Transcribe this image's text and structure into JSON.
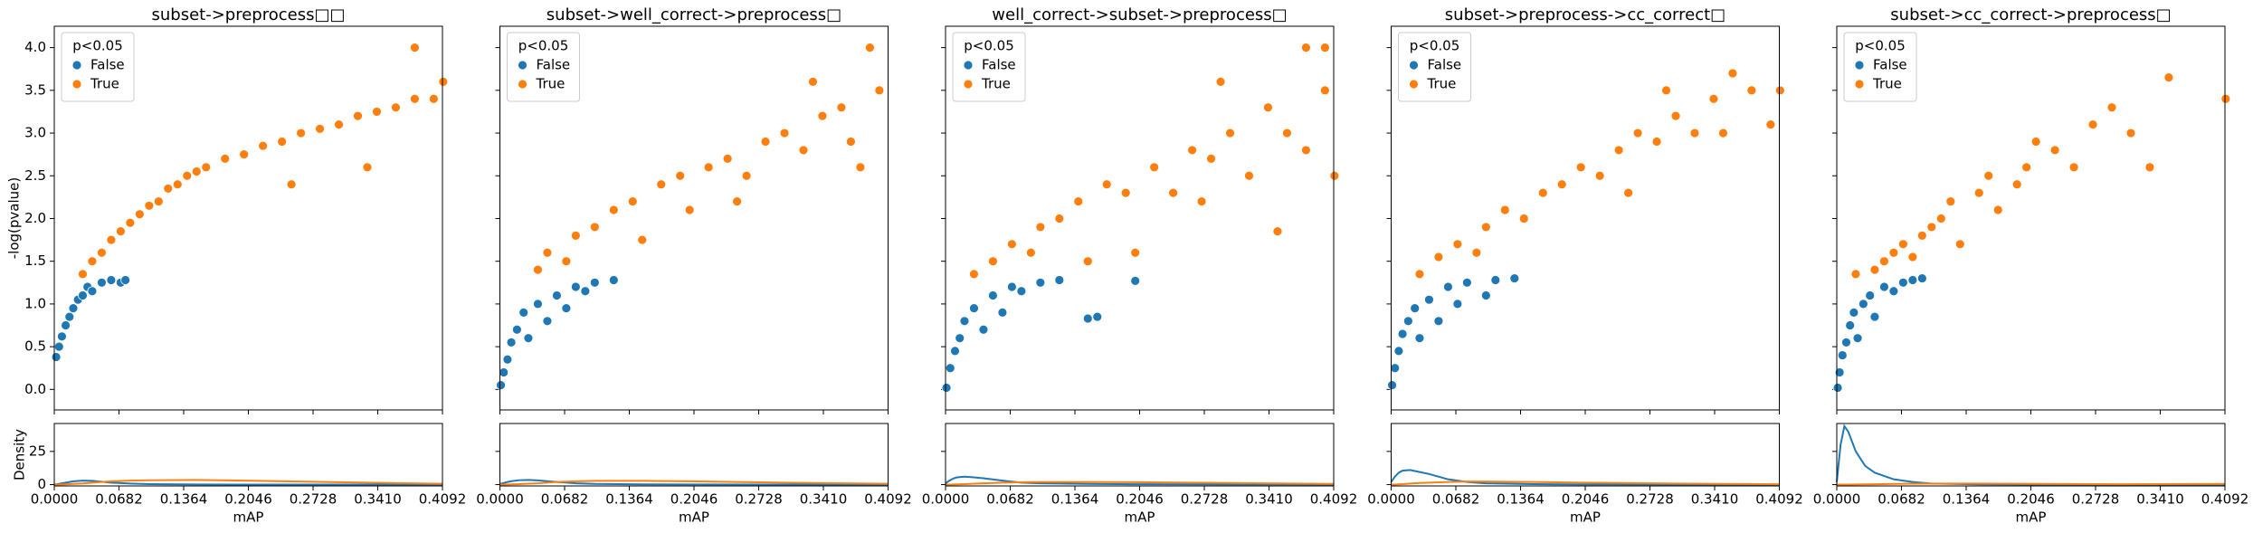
{
  "chart_data": [
    {
      "type": "scatter",
      "title": "subset->preprocess□□",
      "ylabel": "-log(pvalue)",
      "ytick_labels": true,
      "legend_title": "p<0.05",
      "legend": "upper left",
      "xlim": [
        0,
        0.4092
      ],
      "xticks": [
        {
          "value": 0,
          "label": "0.0000"
        },
        0.0682,
        0.1364,
        0.2046,
        0.2728,
        {
          "value": 0.341,
          "label": "0.3410"
        },
        0.4092
      ],
      "ylim": [
        -0.24,
        4.25
      ],
      "yticks": [
        {
          "value": 0,
          "label": "0.0"
        },
        0.5,
        {
          "value": 1,
          "label": "1.0"
        },
        1.5,
        {
          "value": 2,
          "label": "2.0"
        },
        2.5,
        {
          "value": 3,
          "label": "3.0"
        },
        3.5,
        {
          "value": 4,
          "label": "4.0"
        }
      ],
      "series": [
        {
          "name": "False",
          "color": "#1f77b4",
          "x": [
            0.002,
            0.005,
            0.008,
            0.012,
            0.016,
            0.02,
            0.025,
            0.03,
            0.035,
            0.04,
            0.05,
            0.06,
            0.07,
            0.075
          ],
          "y": [
            0.38,
            0.5,
            0.62,
            0.75,
            0.85,
            0.95,
            1.05,
            1.1,
            1.2,
            1.15,
            1.25,
            1.28,
            1.25,
            1.28
          ]
        },
        {
          "name": "True",
          "color": "#ff7f0e",
          "x": [
            0.03,
            0.04,
            0.05,
            0.06,
            0.07,
            0.08,
            0.09,
            0.1,
            0.11,
            0.12,
            0.13,
            0.14,
            0.15,
            0.16,
            0.18,
            0.2,
            0.22,
            0.24,
            0.26,
            0.28,
            0.3,
            0.32,
            0.34,
            0.36,
            0.38,
            0.4,
            0.38,
            0.41,
            0.25,
            0.33
          ],
          "y": [
            1.35,
            1.5,
            1.6,
            1.75,
            1.85,
            1.95,
            2.05,
            2.15,
            2.2,
            2.35,
            2.4,
            2.5,
            2.55,
            2.6,
            2.7,
            2.75,
            2.85,
            2.9,
            3.0,
            3.05,
            3.1,
            3.2,
            3.25,
            3.3,
            3.4,
            3.4,
            4.0,
            3.6,
            2.4,
            2.6
          ]
        }
      ],
      "density": {
        "type": "line",
        "ylabel": "Density",
        "xlabel": "mAP",
        "ytick_labels": true,
        "ylim": [
          -1,
          46
        ],
        "yticks": [
          0,
          25
        ],
        "x": [
          0,
          0.004,
          0.008,
          0.012,
          0.02,
          0.03,
          0.04,
          0.06,
          0.08,
          0.1,
          0.15,
          0.2,
          0.3,
          0.4092
        ],
        "series": [
          {
            "color": "#1f77b4",
            "values": [
              0,
              0.5,
              1,
              1.5,
              2.5,
              3,
              2.8,
              1.5,
              0.8,
              0.4,
              0.1,
              0,
              0,
              0
            ]
          },
          {
            "color": "#ff7f0e",
            "values": [
              0,
              0,
              0.1,
              0.2,
              0.5,
              0.9,
              1.5,
              2.5,
              3,
              3.3,
              3.5,
              3,
              1.8,
              0.6
            ]
          }
        ]
      }
    },
    {
      "type": "scatter",
      "title": "subset->well_correct->preprocess□",
      "ytick_labels": false,
      "legend_title": "p<0.05",
      "legend": "upper left",
      "xlim": [
        0,
        0.4092
      ],
      "xticks": [
        {
          "value": 0,
          "label": "0.0000"
        },
        0.0682,
        0.1364,
        0.2046,
        0.2728,
        {
          "value": 0.341,
          "label": "0.3410"
        },
        0.4092
      ],
      "ylim": [
        -0.24,
        4.25
      ],
      "yticks": [
        0,
        0.5,
        1,
        1.5,
        2,
        2.5,
        3,
        3.5,
        4
      ],
      "series": [
        {
          "name": "False",
          "color": "#1f77b4",
          "x": [
            0.001,
            0.004,
            0.008,
            0.012,
            0.018,
            0.025,
            0.03,
            0.04,
            0.05,
            0.06,
            0.07,
            0.08,
            0.09,
            0.1,
            0.12
          ],
          "y": [
            0.05,
            0.2,
            0.35,
            0.55,
            0.7,
            0.9,
            0.6,
            1.0,
            0.8,
            1.1,
            0.95,
            1.2,
            1.15,
            1.25,
            1.28
          ]
        },
        {
          "name": "True",
          "color": "#ff7f0e",
          "x": [
            0.04,
            0.05,
            0.07,
            0.08,
            0.1,
            0.12,
            0.14,
            0.15,
            0.17,
            0.19,
            0.2,
            0.22,
            0.24,
            0.26,
            0.28,
            0.3,
            0.32,
            0.34,
            0.36,
            0.38,
            0.4,
            0.39,
            0.37,
            0.33,
            0.25
          ],
          "y": [
            1.4,
            1.6,
            1.5,
            1.8,
            1.9,
            2.1,
            2.2,
            1.75,
            2.4,
            2.5,
            2.1,
            2.6,
            2.7,
            2.5,
            2.9,
            3.0,
            2.8,
            3.2,
            3.3,
            2.6,
            3.5,
            4.0,
            2.9,
            3.6,
            2.2
          ]
        }
      ],
      "density": {
        "type": "line",
        "xlabel": "mAP",
        "ytick_labels": false,
        "ylim": [
          -1,
          46
        ],
        "yticks": [
          0,
          25
        ],
        "x": [
          0,
          0.004,
          0.008,
          0.012,
          0.02,
          0.03,
          0.04,
          0.06,
          0.08,
          0.1,
          0.15,
          0.2,
          0.3,
          0.4092
        ],
        "series": [
          {
            "color": "#1f77b4",
            "values": [
              0.5,
              1.2,
              2,
              2.6,
              3.3,
              3.5,
              3.2,
              2,
              1,
              0.5,
              0.2,
              0.1,
              0,
              0
            ]
          },
          {
            "color": "#ff7f0e",
            "values": [
              0,
              0,
              0.1,
              0.2,
              0.4,
              0.7,
              1,
              2,
              2.5,
              2.8,
              2.8,
              2.5,
              1.5,
              0.6
            ]
          }
        ]
      }
    },
    {
      "type": "scatter",
      "title": "well_correct->subset->preprocess□",
      "ytick_labels": false,
      "legend_title": "p<0.05",
      "legend": "upper left",
      "xlim": [
        0,
        0.4092
      ],
      "xticks": [
        {
          "value": 0,
          "label": "0.0000"
        },
        0.0682,
        0.1364,
        0.2046,
        0.2728,
        {
          "value": 0.341,
          "label": "0.3410"
        },
        0.4092
      ],
      "ylim": [
        -0.24,
        4.25
      ],
      "yticks": [
        0,
        0.5,
        1,
        1.5,
        2,
        2.5,
        3,
        3.5,
        4
      ],
      "series": [
        {
          "name": "False",
          "color": "#1f77b4",
          "x": [
            0.001,
            0.005,
            0.01,
            0.015,
            0.02,
            0.03,
            0.04,
            0.05,
            0.06,
            0.07,
            0.08,
            0.1,
            0.12,
            0.15,
            0.16,
            0.2
          ],
          "y": [
            0.02,
            0.25,
            0.45,
            0.6,
            0.8,
            0.95,
            0.7,
            1.1,
            0.9,
            1.2,
            1.15,
            1.25,
            1.28,
            0.83,
            0.85,
            1.27
          ]
        },
        {
          "name": "True",
          "color": "#ff7f0e",
          "x": [
            0.03,
            0.05,
            0.07,
            0.09,
            0.1,
            0.12,
            0.14,
            0.15,
            0.17,
            0.19,
            0.2,
            0.22,
            0.24,
            0.26,
            0.28,
            0.3,
            0.32,
            0.34,
            0.36,
            0.38,
            0.4,
            0.41,
            0.35,
            0.38,
            0.29,
            0.27,
            0.4
          ],
          "y": [
            1.35,
            1.5,
            1.7,
            1.6,
            1.9,
            2.0,
            2.2,
            1.5,
            2.4,
            2.3,
            1.6,
            2.6,
            2.3,
            2.8,
            2.7,
            3.0,
            2.5,
            3.3,
            3.0,
            4.0,
            3.5,
            2.5,
            1.85,
            2.8,
            3.6,
            2.2,
            4.0
          ]
        }
      ],
      "density": {
        "type": "line",
        "xlabel": "mAP",
        "ytick_labels": false,
        "ylim": [
          -1,
          46
        ],
        "yticks": [
          0,
          25
        ],
        "x": [
          0,
          0.004,
          0.008,
          0.012,
          0.02,
          0.03,
          0.04,
          0.06,
          0.08,
          0.1,
          0.15,
          0.2,
          0.3,
          0.4092
        ],
        "series": [
          {
            "color": "#1f77b4",
            "values": [
              1,
              3,
              4.5,
              5.5,
              6,
              5.5,
              4.8,
              3,
              1.5,
              1,
              0.5,
              0.3,
              0.1,
              0
            ]
          },
          {
            "color": "#ff7f0e",
            "values": [
              0,
              0,
              0.1,
              0.2,
              0.4,
              0.7,
              1,
              1.5,
              1.8,
              2,
              2,
              1.8,
              1.2,
              0.5
            ]
          }
        ]
      }
    },
    {
      "type": "scatter",
      "title": "subset->preprocess->cc_correct□",
      "ytick_labels": false,
      "legend_title": "p<0.05",
      "legend": "upper left",
      "xlim": [
        0,
        0.4092
      ],
      "xticks": [
        {
          "value": 0,
          "label": "0.0000"
        },
        0.0682,
        0.1364,
        0.2046,
        0.2728,
        {
          "value": 0.341,
          "label": "0.3410"
        },
        0.4092
      ],
      "ylim": [
        -0.24,
        4.25
      ],
      "yticks": [
        0,
        0.5,
        1,
        1.5,
        2,
        2.5,
        3,
        3.5,
        4
      ],
      "series": [
        {
          "name": "False",
          "color": "#1f77b4",
          "x": [
            0.001,
            0.004,
            0.008,
            0.012,
            0.018,
            0.025,
            0.03,
            0.04,
            0.05,
            0.06,
            0.07,
            0.08,
            0.1,
            0.11,
            0.13
          ],
          "y": [
            0.05,
            0.25,
            0.45,
            0.65,
            0.8,
            0.95,
            0.6,
            1.05,
            0.8,
            1.2,
            1.0,
            1.25,
            1.1,
            1.28,
            1.3
          ]
        },
        {
          "name": "True",
          "color": "#ff7f0e",
          "x": [
            0.03,
            0.05,
            0.07,
            0.09,
            0.1,
            0.12,
            0.14,
            0.16,
            0.18,
            0.2,
            0.22,
            0.24,
            0.26,
            0.28,
            0.3,
            0.32,
            0.34,
            0.36,
            0.38,
            0.4,
            0.41,
            0.35,
            0.25,
            0.29
          ],
          "y": [
            1.35,
            1.55,
            1.7,
            1.6,
            1.9,
            2.1,
            2.0,
            2.3,
            2.4,
            2.6,
            2.5,
            2.8,
            3.0,
            2.9,
            3.2,
            3.0,
            3.4,
            3.7,
            3.5,
            3.1,
            3.5,
            3.0,
            2.3,
            3.5
          ]
        }
      ],
      "density": {
        "type": "line",
        "xlabel": "mAP",
        "ytick_labels": false,
        "ylim": [
          -1,
          46
        ],
        "yticks": [
          0,
          25
        ],
        "x": [
          0,
          0.004,
          0.008,
          0.012,
          0.02,
          0.03,
          0.04,
          0.06,
          0.08,
          0.1,
          0.15,
          0.2,
          0.3,
          0.4092
        ],
        "series": [
          {
            "color": "#1f77b4",
            "values": [
              2,
              6,
              9,
              10.5,
              11,
              9.5,
              8,
              4,
              2,
              1,
              0.4,
              0.1,
              0,
              0
            ]
          },
          {
            "color": "#ff7f0e",
            "values": [
              0,
              0,
              0.2,
              0.4,
              0.8,
              1.2,
              1.5,
              2,
              2.3,
              2.3,
              2,
              1.5,
              0.8,
              0.3
            ]
          }
        ]
      }
    },
    {
      "type": "scatter",
      "title": "subset->cc_correct->preprocess□",
      "ytick_labels": false,
      "legend_title": "p<0.05",
      "legend": "upper left",
      "xlim": [
        0,
        0.4092
      ],
      "xticks": [
        {
          "value": 0,
          "label": "0.0000"
        },
        0.0682,
        0.1364,
        0.2046,
        0.2728,
        {
          "value": 0.341,
          "label": "0.3410"
        },
        0.4092
      ],
      "ylim": [
        -0.24,
        4.25
      ],
      "yticks": [
        0,
        0.5,
        1,
        1.5,
        2,
        2.5,
        3,
        3.5,
        4
      ],
      "series": [
        {
          "name": "False",
          "color": "#1f77b4",
          "x": [
            0.001,
            0.003,
            0.006,
            0.01,
            0.014,
            0.018,
            0.022,
            0.028,
            0.035,
            0.04,
            0.05,
            0.06,
            0.07,
            0.08,
            0.09
          ],
          "y": [
            0.02,
            0.2,
            0.4,
            0.55,
            0.75,
            0.9,
            0.6,
            1.0,
            1.1,
            0.85,
            1.2,
            1.15,
            1.25,
            1.28,
            1.3
          ]
        },
        {
          "name": "True",
          "color": "#ff7f0e",
          "x": [
            0.02,
            0.04,
            0.05,
            0.06,
            0.07,
            0.08,
            0.09,
            0.1,
            0.11,
            0.12,
            0.13,
            0.15,
            0.16,
            0.17,
            0.19,
            0.2,
            0.21,
            0.23,
            0.25,
            0.27,
            0.29,
            0.31,
            0.33,
            0.35,
            0.41
          ],
          "y": [
            1.35,
            1.4,
            1.5,
            1.6,
            1.7,
            1.55,
            1.8,
            1.9,
            2.0,
            2.2,
            1.7,
            2.3,
            2.5,
            2.1,
            2.4,
            2.6,
            2.9,
            2.8,
            2.6,
            3.1,
            3.3,
            3.0,
            2.6,
            3.65,
            3.4
          ]
        }
      ],
      "density": {
        "type": "line",
        "xlabel": "mAP",
        "ytick_labels": false,
        "ylim": [
          -1,
          46
        ],
        "yticks": [
          0,
          25
        ],
        "x": [
          0,
          0.004,
          0.008,
          0.012,
          0.02,
          0.03,
          0.04,
          0.06,
          0.08,
          0.1,
          0.15,
          0.2,
          0.3,
          0.4092
        ],
        "series": [
          {
            "color": "#1f77b4",
            "values": [
              2,
              30,
              44,
              40,
              25,
              14,
              9,
              4,
              2,
              0.8,
              0.2,
              0,
              0,
              0
            ]
          },
          {
            "color": "#ff7f0e",
            "values": [
              0,
              0,
              0,
              0,
              0.1,
              0.2,
              0.3,
              0.5,
              0.7,
              0.8,
              0.8,
              0.6,
              0.3,
              0.5
            ]
          }
        ]
      }
    }
  ]
}
